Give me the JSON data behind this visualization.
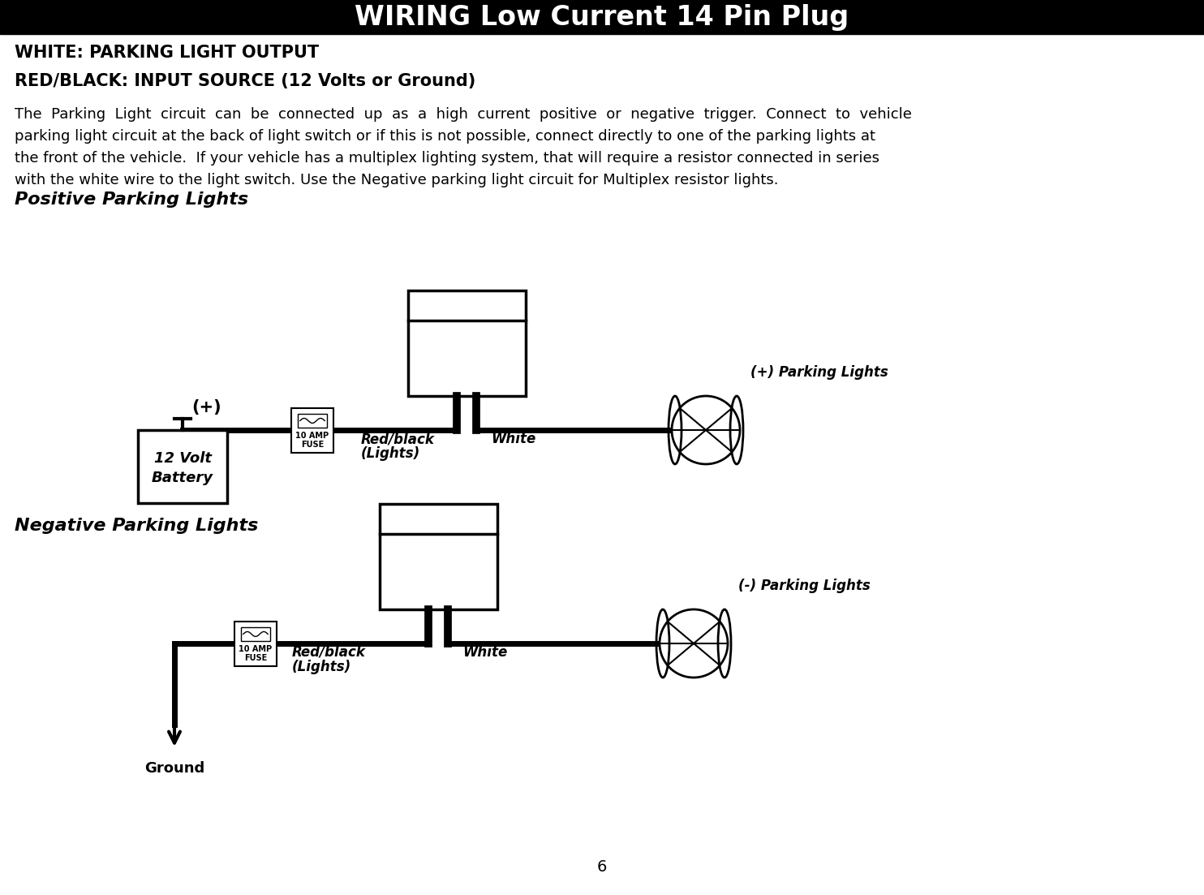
{
  "title": "WIRING Low Current 14 Pin Plug",
  "title_bg": "#000000",
  "title_fg": "#ffffff",
  "line1_bold": "WHITE: PARKING LIGHT OUTPUT",
  "line2_bold": "RED/BLACK: INPUT SOURCE (12 Volts or Ground)",
  "body_lines": [
    "The  Parking  Light  circuit  can  be  connected  up  as  a  high  current  positive  or  negative  trigger.  Connect  to  vehicle",
    "parking light circuit at the back of light switch or if this is not possible, connect directly to one of the parking lights at",
    "the front of the vehicle.  If your vehicle has a multiplex lighting system, that will require a resistor connected in series",
    "with the white wire to the light switch. Use the Negative parking light circuit for Multiplex resistor lights."
  ],
  "section1_title": "Positive Parking Lights",
  "section2_title": "Negative Parking Lights",
  "page_number": "6",
  "pos_battery_label1": "12 Volt",
  "pos_battery_label2": "Battery",
  "pos_plus_label": "(+)",
  "fuse_label1": "10 AMP",
  "fuse_label2": "FUSE",
  "redblack_label1": "Red/black",
  "redblack_label2": "(Lights)",
  "white_label": "White",
  "pos_light_label": "(+) Parking Lights",
  "neg_light_label": "(-) Parking Lights",
  "ground_label": "Ground"
}
